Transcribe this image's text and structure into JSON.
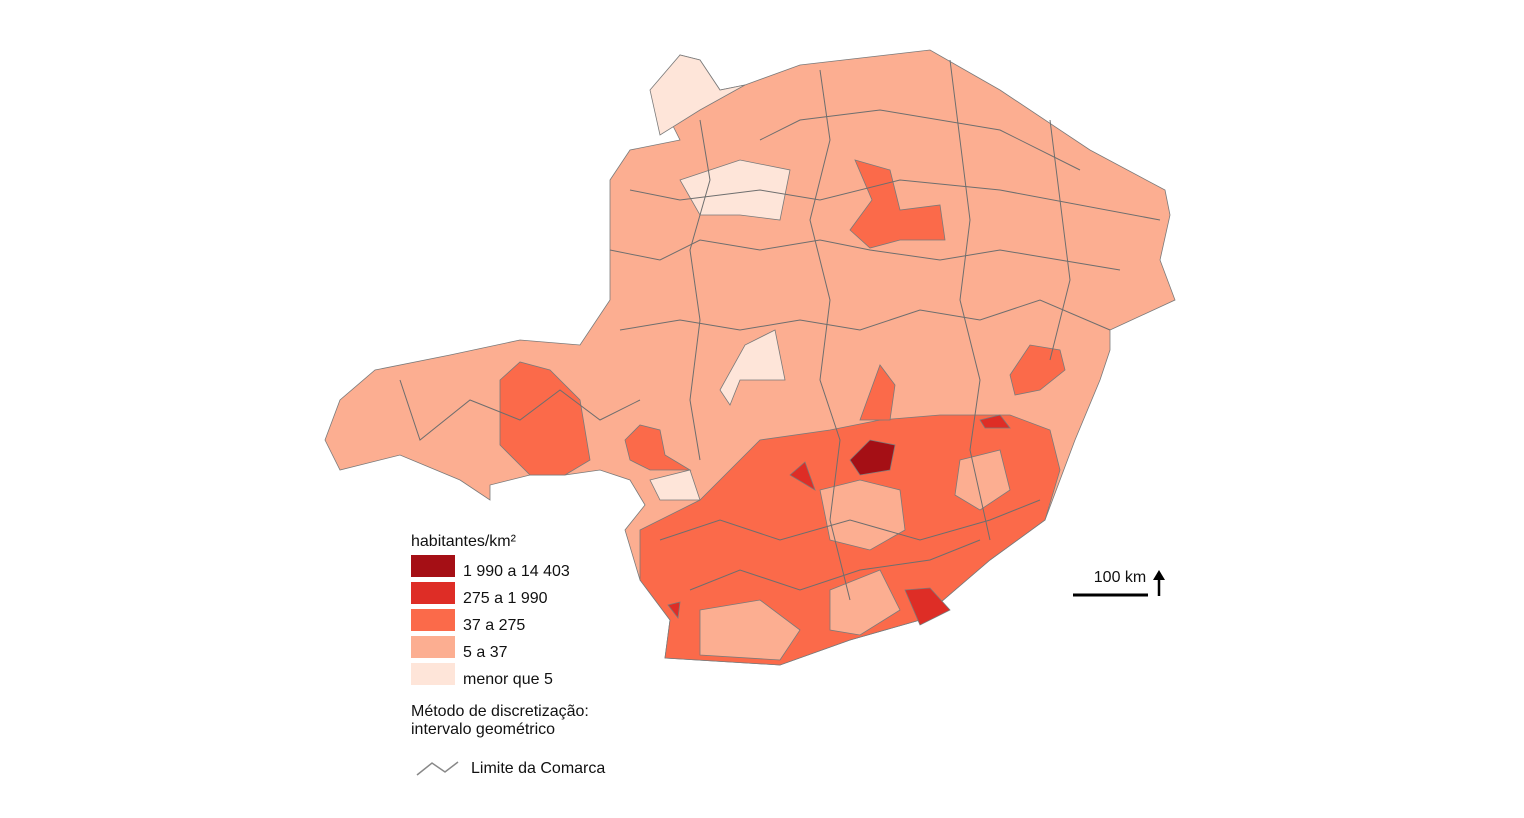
{
  "legend": {
    "title": "habitantes/km²",
    "classes": [
      {
        "label": "1 990 a 14 403",
        "color": "#a50f15"
      },
      {
        "label": "275 a 1 990",
        "color": "#de2d26"
      },
      {
        "label": "37 a 275",
        "color": "#fb6a4a"
      },
      {
        "label": "5 a 37",
        "color": "#fcae91"
      },
      {
        "label": "menor que 5",
        "color": "#fee5d9"
      }
    ]
  },
  "method": {
    "line1": "Método de discretização:",
    "line2": "intervalo geométrico"
  },
  "scale_bar": {
    "label": "100 km"
  },
  "boundary_legend": {
    "label": "Limite da Comarca"
  }
}
